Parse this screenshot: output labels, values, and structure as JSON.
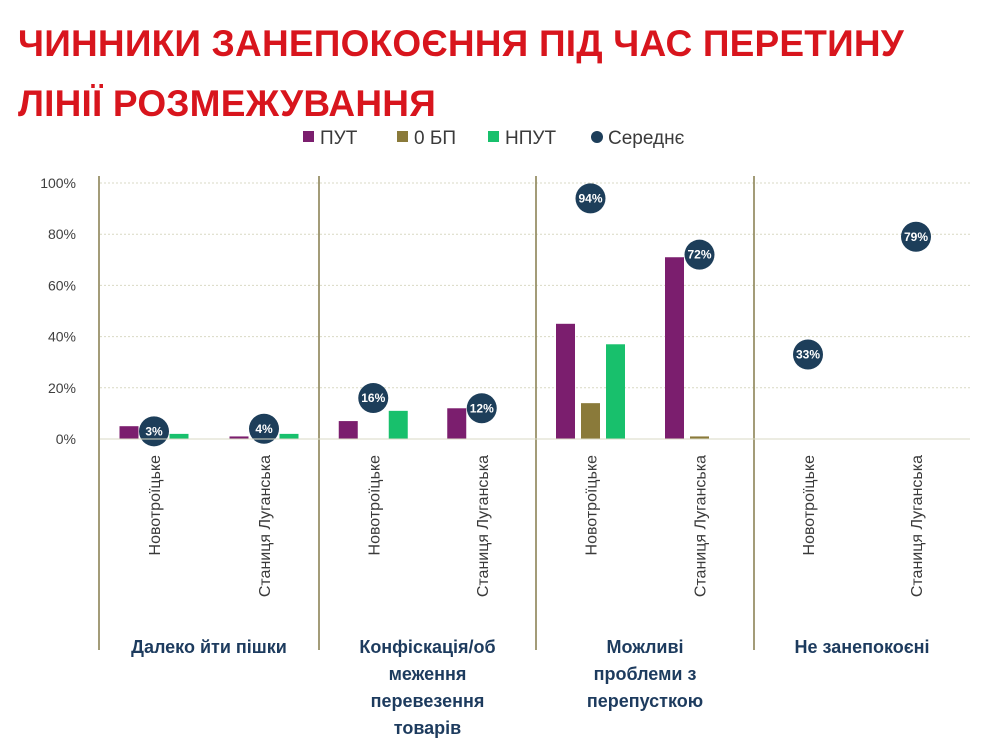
{
  "title": {
    "line1": "ЧИННИКИ ЗАНЕПОКОЄННЯ ПІД ЧАС ПЕРЕТИНУ",
    "line2": "ЛІНІЇ РОЗМЕЖУВАННЯ"
  },
  "colors": {
    "ПУТ": "#7b1e6e",
    "0 БП": "#8a7a3a",
    "НПУТ": "#18c06c",
    "Середнє": "#1d3e5a",
    "gridline": "#d9d9c4",
    "separator": "#8c8456"
  },
  "chart_data": {
    "type": "bar",
    "ylim": [
      0,
      100
    ],
    "yticks": [
      "0%",
      "20%",
      "40%",
      "60%",
      "80%",
      "100%"
    ],
    "legend": [
      "ПУТ",
      "0 БП",
      "НПУТ",
      "Середнє"
    ],
    "legend_position": "top",
    "grid": true,
    "groups": [
      {
        "label_lines": [
          "Далеко йти пішки"
        ],
        "categories": [
          {
            "name": "Новотроїцьке",
            "ПУТ": 5,
            "0 БП": 0,
            "НПУТ": 2,
            "Середнє": 3,
            "avg_label": "3%"
          },
          {
            "name": "Станиця Луганська",
            "ПУТ": 1,
            "0 БП": 0,
            "НПУТ": 2,
            "Середнє": 4,
            "avg_label": "4%"
          }
        ]
      },
      {
        "label_lines": [
          "Конфіскація/об",
          "меження",
          "перевезення",
          "товарів"
        ],
        "categories": [
          {
            "name": "Новотроїцьке",
            "ПУТ": 7,
            "0 БП": 0,
            "НПУТ": 11,
            "Середнє": 16,
            "avg_label": "16%"
          },
          {
            "name": "Станиця Луганська",
            "ПУТ": 12,
            "0 БП": 0,
            "НПУТ": 0,
            "Середнє": 12,
            "avg_label": "12%"
          }
        ]
      },
      {
        "label_lines": [
          "Можливі",
          "проблеми з",
          "перепусткою"
        ],
        "categories": [
          {
            "name": "Новотроїцьке",
            "ПУТ": 45,
            "0 БП": 14,
            "НПУТ": 37,
            "Середнє": 94,
            "avg_label": "94%"
          },
          {
            "name": "Станиця Луганська",
            "ПУТ": 71,
            "0 БП": 1,
            "НПУТ": 0,
            "Середнє": 72,
            "avg_label": "72%"
          }
        ]
      },
      {
        "label_lines": [
          "Не занепокоєні"
        ],
        "categories": [
          {
            "name": "Новотроїцьке",
            "ПУТ": 0,
            "0 БП": 0,
            "НПУТ": 0,
            "Середнє": 33,
            "avg_label": "33%"
          },
          {
            "name": "Станиця Луганська",
            "ПУТ": 0,
            "0 БП": 0,
            "НПУТ": 0,
            "Середнє": 79,
            "avg_label": "79%"
          }
        ]
      }
    ]
  }
}
